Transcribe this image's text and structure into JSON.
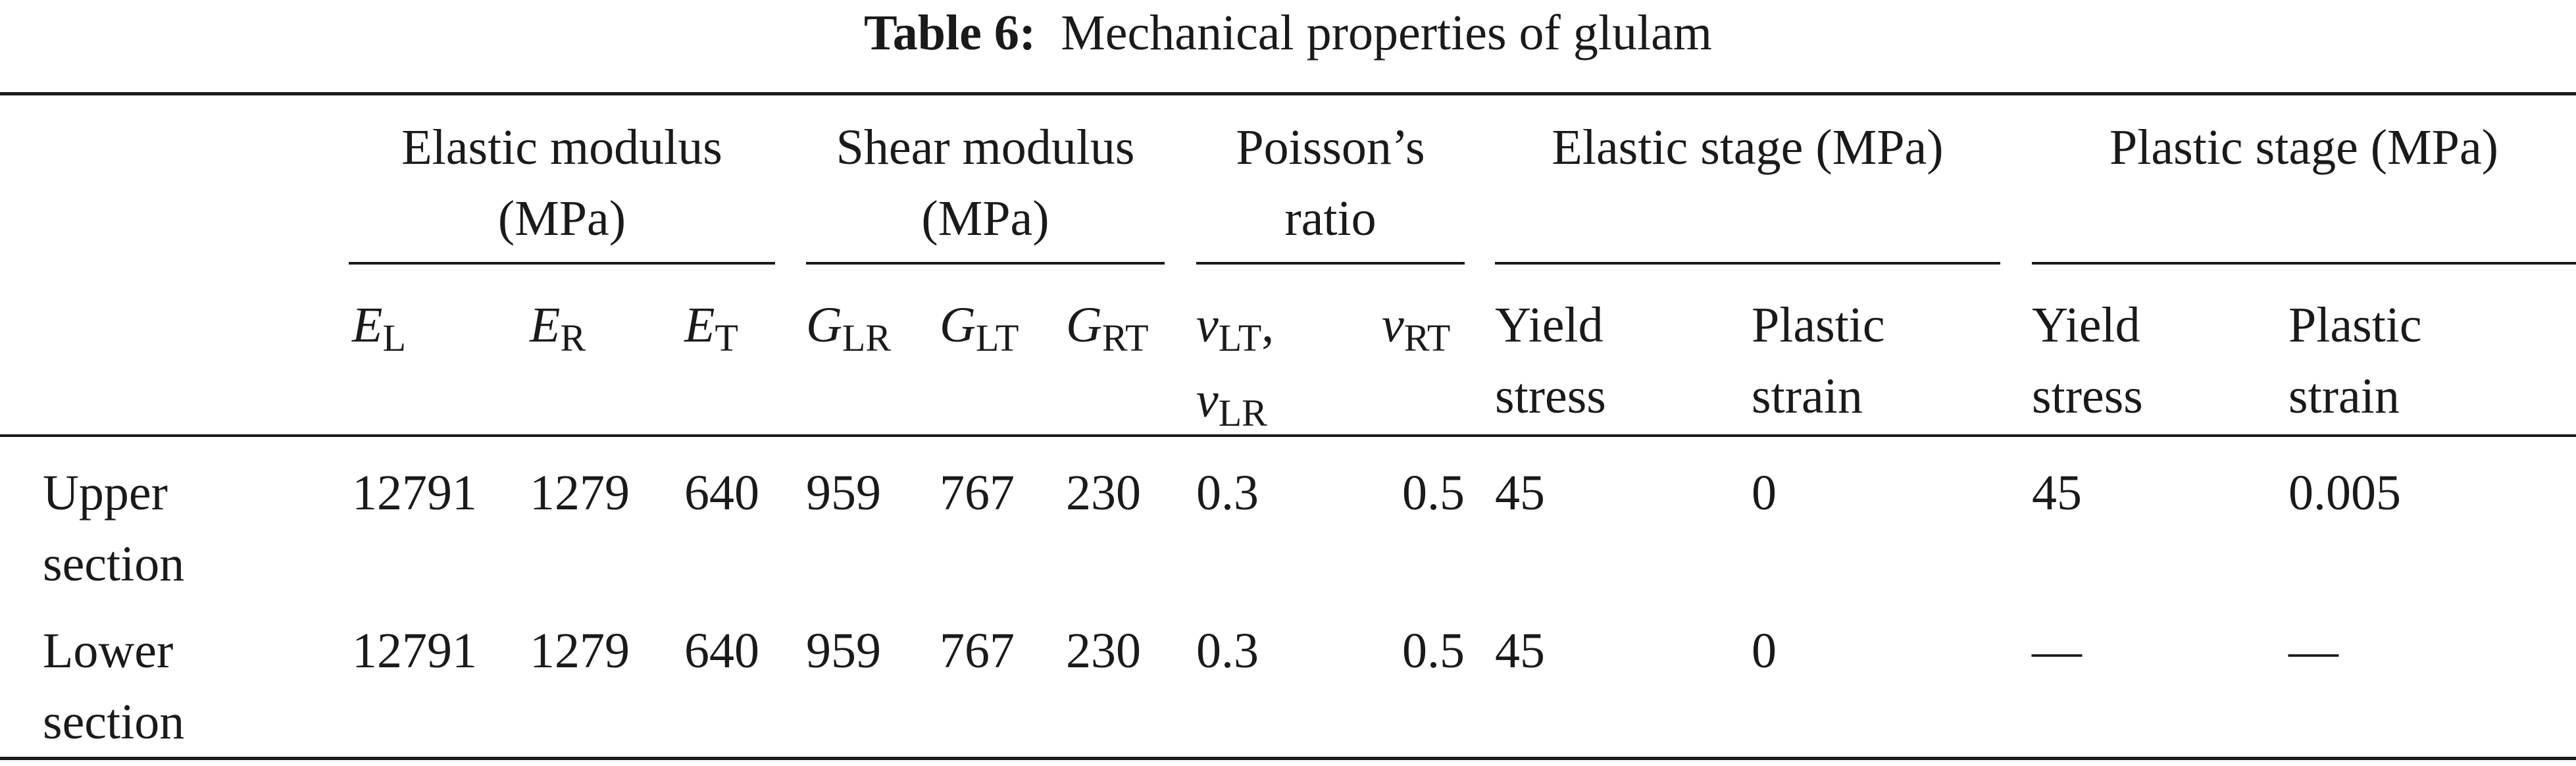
{
  "caption": {
    "label": "Table 6:",
    "title": "Mechanical properties of glulam"
  },
  "groups": {
    "elastic_modulus": [
      "Elastic modulus",
      "(MPa)"
    ],
    "shear_modulus": [
      "Shear modulus",
      "(MPa)"
    ],
    "poissons_ratio": [
      "Poisson’s",
      "ratio"
    ],
    "elastic_stage": "Elastic stage (MPa)",
    "plastic_stage": "Plastic stage (MPa)"
  },
  "columns": {
    "EL": {
      "sym": "E",
      "sub": "L"
    },
    "ER": {
      "sym": "E",
      "sub": "R"
    },
    "ET": {
      "sym": "E",
      "sub": "T"
    },
    "GLR": {
      "sym": "G",
      "sub": "LR"
    },
    "GLT": {
      "sym": "G",
      "sub": "LT"
    },
    "GRT": {
      "sym": "G",
      "sub": "RT"
    },
    "vLT": {
      "sym": "v",
      "sub": "LT",
      "trail": ","
    },
    "vLR": {
      "sym": "v",
      "sub": "LR"
    },
    "vRT": {
      "sym": "v",
      "sub": "RT"
    },
    "yield_stress": [
      "Yield",
      "stress"
    ],
    "plastic_strain": [
      "Plastic",
      "strain"
    ]
  },
  "rows": [
    {
      "label": [
        "Upper",
        "section"
      ],
      "values": [
        "12791",
        "1279",
        "640",
        "959",
        "767",
        "230",
        "0.3",
        "0.5",
        "45",
        "0",
        "45",
        "0.005"
      ]
    },
    {
      "label": [
        "Lower",
        "section"
      ],
      "values": [
        "12791",
        "1279",
        "640",
        "959",
        "767",
        "230",
        "0.3",
        "0.5",
        "45",
        "0",
        "—",
        "—"
      ]
    }
  ]
}
